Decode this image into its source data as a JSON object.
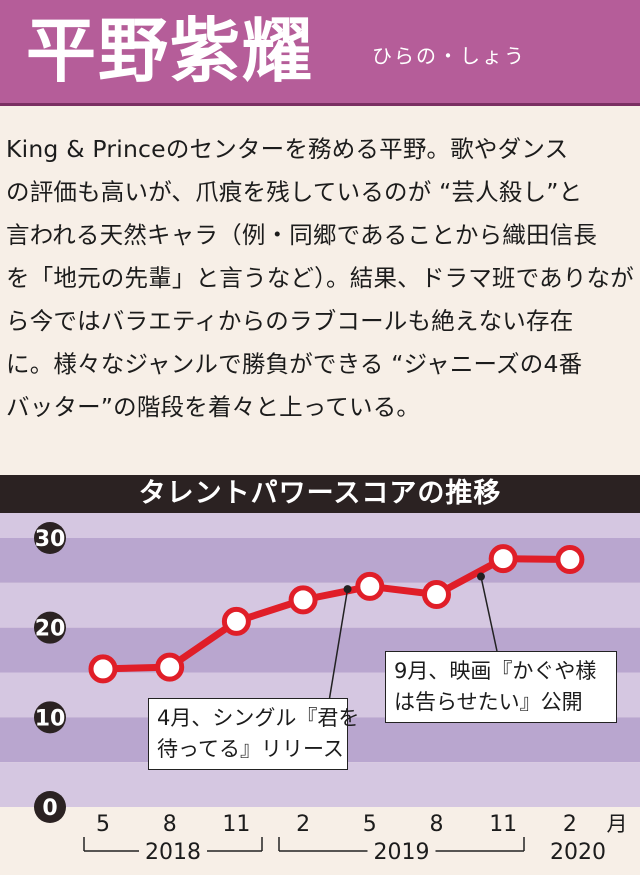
{
  "header": {
    "name": "平野紫耀",
    "reading": "ひらの・しょう"
  },
  "bio": {
    "lines": [
      "King & Princeのセンターを務める平野。歌やダンス",
      "の評価も高いが、爪痕を残しているのが “芸人殺し”と",
      "言われる天然キャラ（例・同郷であることから織田信長",
      "を「地元の先輩」と言うなど）。結果、ドラマ班でありなが",
      "ら今ではバラエティからのラブコールも絶えない存在",
      "に。様々なジャンルで勝負ができる “ジャニーズの4番",
      "バッター”の階段を着々と上っている。"
    ]
  },
  "chart_data": {
    "type": "line",
    "title": "タレントパワースコアの推移",
    "x": [
      "2018-5",
      "2018-8",
      "2018-11",
      "2019-2",
      "2019-5",
      "2019-8",
      "2019-11",
      "2020-2"
    ],
    "tick_labels": [
      "5",
      "8",
      "11",
      "2",
      "5",
      "8",
      "11",
      "2"
    ],
    "x_unit": "月",
    "year_labels": [
      "2018",
      "2019",
      "2020"
    ],
    "series": [
      {
        "values": [
          15.4,
          15.6,
          20.7,
          23.1,
          24.6,
          23.7,
          27.7,
          27.6
        ]
      }
    ],
    "ylim": [
      0,
      30
    ],
    "y_ticks": [
      0,
      10,
      20,
      30
    ],
    "annotations": [
      {
        "lines": [
          "4月、シングル『君を",
          "待ってる』リリース"
        ],
        "x": "2019-4",
        "y": 24.3
      },
      {
        "lines": [
          "9月、映画『かぐや様",
          "は告らせたい』公開"
        ],
        "x": "2019-10",
        "y": 25.7
      }
    ],
    "colors": {
      "line": "#e01e28",
      "band_dark": "#b9a6cf",
      "band_light": "#d5c7e1"
    }
  }
}
